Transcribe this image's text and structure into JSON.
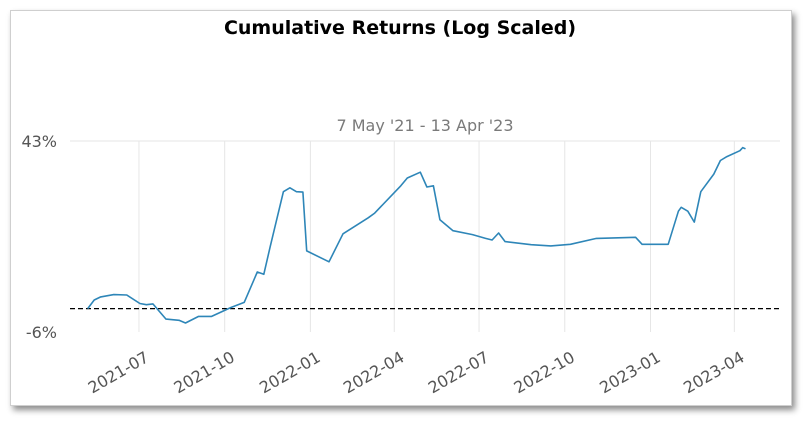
{
  "chart_data": {
    "type": "line",
    "title": "Cumulative Returns (Log Scaled)",
    "subtitle": "7 May '21 - 13 Apr '23",
    "xlabel": "",
    "ylabel": "",
    "y_tick_labels": [
      "43%",
      "-6%"
    ],
    "y_ticks": [
      0.43,
      -0.06
    ],
    "baseline": 0,
    "x_tick_labels": [
      "2021-07",
      "2021-10",
      "2022-01",
      "2022-04",
      "2022-07",
      "2022-10",
      "2023-01",
      "2023-04"
    ],
    "x_ticks": [
      "2021-07-01",
      "2021-10-01",
      "2022-01-01",
      "2022-04-01",
      "2022-07-01",
      "2022-10-01",
      "2023-01-01",
      "2023-04-01"
    ],
    "x_range": [
      "2021-04-18",
      "2023-05-20"
    ],
    "y_range": [
      -0.06,
      0.43
    ],
    "grid": "vertical",
    "series": [
      {
        "color": "#2e86b8",
        "points": [
          [
            "2021-05-07",
            0.0
          ],
          [
            "2021-05-14",
            0.022
          ],
          [
            "2021-05-21",
            0.03
          ],
          [
            "2021-06-04",
            0.036
          ],
          [
            "2021-06-18",
            0.035
          ],
          [
            "2021-07-02",
            0.013
          ],
          [
            "2021-07-09",
            0.01
          ],
          [
            "2021-07-16",
            0.012
          ],
          [
            "2021-07-30",
            -0.027
          ],
          [
            "2021-08-13",
            -0.03
          ],
          [
            "2021-08-20",
            -0.037
          ],
          [
            "2021-09-03",
            -0.02
          ],
          [
            "2021-09-17",
            -0.02
          ],
          [
            "2021-10-08",
            0.003
          ],
          [
            "2021-10-22",
            0.016
          ],
          [
            "2021-11-05",
            0.094
          ],
          [
            "2021-11-12",
            0.088
          ],
          [
            "2021-11-19",
            0.16
          ],
          [
            "2021-12-03",
            0.3
          ],
          [
            "2021-12-10",
            0.31
          ],
          [
            "2021-12-17",
            0.3
          ],
          [
            "2021-12-24",
            0.299
          ],
          [
            "2021-12-28",
            0.148
          ],
          [
            "2022-01-21",
            0.12
          ],
          [
            "2022-02-05",
            0.192
          ],
          [
            "2022-03-04",
            0.233
          ],
          [
            "2022-03-11",
            0.245
          ],
          [
            "2022-04-08",
            0.315
          ],
          [
            "2022-04-15",
            0.335
          ],
          [
            "2022-04-29",
            0.35
          ],
          [
            "2022-05-06",
            0.312
          ],
          [
            "2022-05-13",
            0.315
          ],
          [
            "2022-05-20",
            0.228
          ],
          [
            "2022-06-03",
            0.2
          ],
          [
            "2022-06-24",
            0.19
          ],
          [
            "2022-07-08",
            0.18
          ],
          [
            "2022-07-15",
            0.176
          ],
          [
            "2022-07-22",
            0.194
          ],
          [
            "2022-07-29",
            0.172
          ],
          [
            "2022-08-26",
            0.164
          ],
          [
            "2022-09-16",
            0.161
          ],
          [
            "2022-10-07",
            0.165
          ],
          [
            "2022-11-04",
            0.18
          ],
          [
            "2022-12-16",
            0.183
          ],
          [
            "2022-12-23",
            0.165
          ],
          [
            "2023-01-20",
            0.165
          ],
          [
            "2023-01-31",
            0.25
          ],
          [
            "2023-02-03",
            0.26
          ],
          [
            "2023-02-10",
            0.25
          ],
          [
            "2023-02-17",
            0.222
          ],
          [
            "2023-02-24",
            0.3
          ],
          [
            "2023-03-10",
            0.345
          ],
          [
            "2023-03-17",
            0.38
          ],
          [
            "2023-03-24",
            0.39
          ],
          [
            "2023-04-07",
            0.405
          ],
          [
            "2023-04-10",
            0.413
          ],
          [
            "2023-04-13",
            0.41
          ]
        ]
      }
    ]
  }
}
